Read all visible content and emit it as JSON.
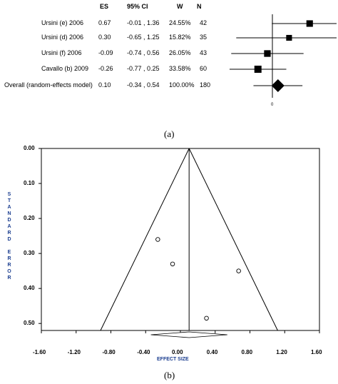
{
  "chart_data": [
    {
      "type": "forest",
      "columns": [
        "ES",
        "95% CI",
        "W",
        "N"
      ],
      "studies": [
        {
          "name": "Ursini (e) 2006",
          "es": 0.67,
          "ci": "-0.01 , 1.36",
          "lo": -0.01,
          "hi": 1.36,
          "w": "24.55%",
          "n": 42
        },
        {
          "name": "Ursini (d) 2006",
          "es": 0.3,
          "ci": "-0.65 , 1.25",
          "lo": -0.65,
          "hi": 1.25,
          "w": "15.82%",
          "n": 35
        },
        {
          "name": "Ursini (f) 2006",
          "es": -0.09,
          "ci": "-0.74 , 0.56",
          "lo": -0.74,
          "hi": 0.56,
          "w": "26.05%",
          "n": 43
        },
        {
          "name": "Cavallo (b) 2009",
          "es": -0.26,
          "ci": "-0.77 , 0.25",
          "lo": -0.77,
          "hi": 0.25,
          "w": "33.58%",
          "n": 60
        }
      ],
      "overall": {
        "name": "Overall (random-effects model)",
        "es": 0.1,
        "ci": "-0.34 , 0.54",
        "lo": -0.34,
        "hi": 0.54,
        "w": "100.00%",
        "n": 180
      },
      "zero_label": "0",
      "caption": "(a)"
    },
    {
      "type": "funnel",
      "points": [
        {
          "x": -0.26,
          "y": 0.26
        },
        {
          "x": -0.09,
          "y": 0.33
        },
        {
          "x": 0.67,
          "y": 0.35
        },
        {
          "x": 0.3,
          "y": 0.485
        }
      ],
      "pooled": 0.1,
      "xlabel": "EFFECT SIZE",
      "ylabel": "STANDARD ERROR",
      "xticks": [
        "-1.60",
        "-1.20",
        "-0.80",
        "-0.40",
        "0.00",
        "0.40",
        "0.80",
        "1.20",
        "1.60"
      ],
      "yticks": [
        "0.00",
        "0.10",
        "0.20",
        "0.30",
        "0.40",
        "0.50"
      ],
      "xlim": [
        -1.6,
        1.6
      ],
      "ylim": [
        0,
        0.52
      ],
      "caption": "(b)"
    }
  ]
}
